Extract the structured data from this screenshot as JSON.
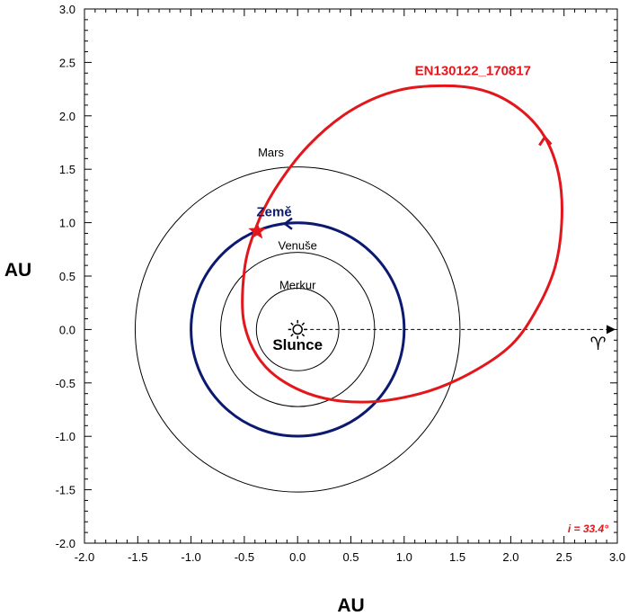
{
  "chart_data": {
    "type": "scatter",
    "xlabel": "AU",
    "ylabel": "AU",
    "xlim": [
      -2.0,
      3.0
    ],
    "ylim": [
      -2.0,
      3.0
    ],
    "x_ticks": [
      "-2.0",
      "-1.5",
      "-1.0",
      "-0.5",
      "0.0",
      "0.5",
      "1.0",
      "1.5",
      "2.0",
      "2.5",
      "3.0"
    ],
    "y_ticks": [
      "3.0",
      "2.5",
      "2.0",
      "1.5",
      "1.0",
      "0.5",
      "0.0",
      "-0.5",
      "-1.0",
      "-1.5",
      "-2.0"
    ],
    "grid": false,
    "sun": {
      "label": "Slunce",
      "x": 0.0,
      "y": 0.0
    },
    "planets": [
      {
        "name": "Merkur",
        "radius_au": 0.387,
        "color": "#000000"
      },
      {
        "name": "Venuše",
        "radius_au": 0.723,
        "color": "#000000"
      },
      {
        "name": "Země",
        "radius_au": 1.0,
        "color": "#0b1a70"
      },
      {
        "name": "Mars",
        "radius_au": 1.524,
        "color": "#000000"
      }
    ],
    "comet": {
      "name": "EN130122_170817",
      "color": "#e3161b",
      "orbit_points": [
        [
          1.45,
          2.28
        ],
        [
          1.8,
          2.22
        ],
        [
          2.1,
          2.05
        ],
        [
          2.32,
          1.8
        ],
        [
          2.45,
          1.45
        ],
        [
          2.48,
          1.05
        ],
        [
          2.42,
          0.6
        ],
        [
          2.25,
          0.2
        ],
        [
          2.0,
          -0.15
        ],
        [
          1.6,
          -0.42
        ],
        [
          1.15,
          -0.6
        ],
        [
          0.6,
          -0.68
        ],
        [
          0.1,
          -0.6
        ],
        [
          -0.3,
          -0.35
        ],
        [
          -0.5,
          0.05
        ],
        [
          -0.5,
          0.55
        ],
        [
          -0.4,
          0.93
        ],
        [
          -0.22,
          1.3
        ],
        [
          0.1,
          1.72
        ],
        [
          0.5,
          2.05
        ],
        [
          0.95,
          2.24
        ],
        [
          1.45,
          2.28
        ]
      ],
      "position": {
        "x": -0.38,
        "y": 0.92
      },
      "inclination_label": "i = 33.4°"
    },
    "vernal_equinox": {
      "symbol": "♈",
      "direction_x_end": 3.0
    }
  }
}
